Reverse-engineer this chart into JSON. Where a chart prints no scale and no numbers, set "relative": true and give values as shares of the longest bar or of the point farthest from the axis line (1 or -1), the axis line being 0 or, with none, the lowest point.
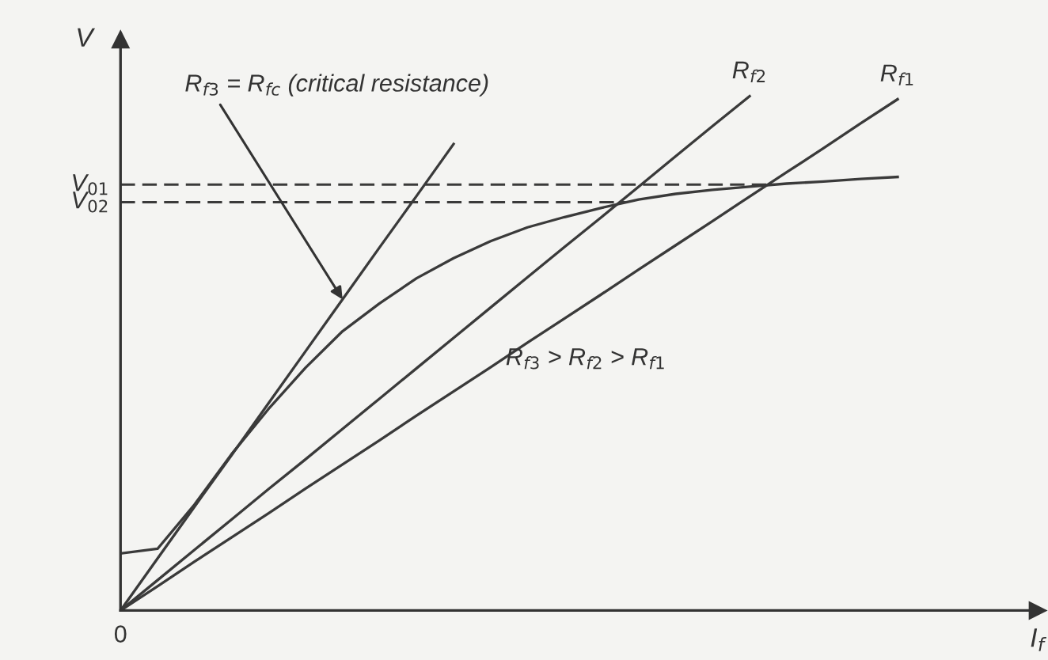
{
  "chart_data": {
    "type": "line",
    "relative": true,
    "xlabel": "I$_{f}$",
    "ylabel": "V",
    "legend": false,
    "line_style": "solid",
    "marker": "none",
    "categories": [
      null,
      null,
      null,
      null,
      null,
      null,
      null,
      null,
      null,
      null,
      null,
      null,
      null,
      null,
      null,
      null,
      null,
      null,
      null,
      null,
      null,
      null
    ],
    "series": [
      {
        "color": "#3a3a3a",
        "values": [
          0.111,
          0.12,
          0.206,
          0.304,
          0.392,
          0.472,
          0.543,
          0.597,
          0.646,
          0.685,
          0.718,
          0.745,
          0.765,
          0.783,
          0.799,
          0.81,
          0.818,
          0.824,
          0.83,
          0.834,
          0.839,
          0.843
        ]
      },
      {
        "color": "#3a3a3a",
        "values": [
          0,
          0.101,
          0.202,
          0.302,
          0.403,
          0.504,
          0.605,
          0.706,
          0.806,
          0.907,
          null,
          null,
          null,
          null,
          null,
          null,
          null,
          null,
          null,
          null,
          null,
          null
        ]
      },
      {
        "name": "R$_{f2}$",
        "color": "#3a3a3a",
        "values": [
          0,
          0.059,
          0.118,
          0.177,
          0.236,
          0.294,
          0.353,
          0.412,
          0.471,
          0.53,
          0.589,
          0.648,
          0.707,
          0.765,
          0.824,
          0.883,
          0.942,
          1.0,
          null,
          null,
          null,
          null
        ]
      },
      {
        "name": "R$_{f1}$",
        "color": "#3a3a3a",
        "values": [
          0,
          0.047,
          0.095,
          0.142,
          0.189,
          0.237,
          0.284,
          0.331,
          0.379,
          0.426,
          0.473,
          0.521,
          0.568,
          0.615,
          0.663,
          0.71,
          0.757,
          0.805,
          0.852,
          0.899,
          0.947,
          0.994
        ]
      }
    ],
    "ref_lines": [
      {
        "axis": "y",
        "value": 0.828,
        "label": "V$_{01}$",
        "color": "#3a3a3a",
        "line_style": "dashed"
      },
      {
        "axis": "y",
        "value": 0.794,
        "label": "V$_{02}$",
        "color": "#3a3a3a",
        "line_style": "dashed"
      }
    ],
    "annotations": [
      "R$_{f3}$ = R$_{fc}$ (critical resistance)",
      "R$_{f3}$ > R$_{f2}$ > R$_{f1}$",
      "0"
    ]
  }
}
